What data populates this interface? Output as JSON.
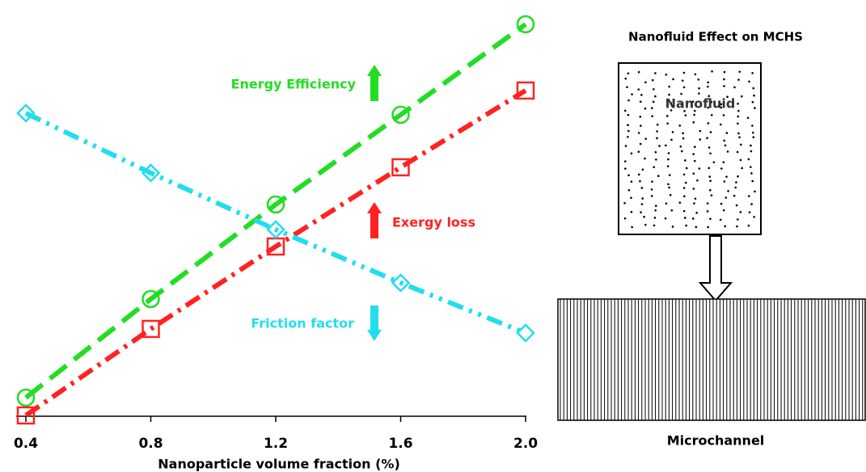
{
  "chart_data": {
    "type": "line",
    "x_label": "Nanoparticle volume fraction (%)",
    "x": [
      0.4,
      0.8,
      1.2,
      1.6,
      2.0
    ],
    "xlim": [
      0.4,
      2.0
    ],
    "xticks": [
      0.4,
      0.8,
      1.2,
      1.6,
      {
        "value": 2,
        "label": "2.0"
      }
    ],
    "ylim": [
      0,
      100
    ],
    "series": [
      {
        "name": "Energy Efficiency",
        "color": "#22dd22",
        "marker": "circle",
        "line_style": "long-dash",
        "values": [
          4.6,
          29,
          52.4,
          74.6,
          97
        ]
      },
      {
        "name": "Exergy loss",
        "color": "#ff2222",
        "marker": "square",
        "line_style": "dash-dot",
        "values": [
          0.2,
          21.6,
          42,
          61.6,
          80.6
        ]
      },
      {
        "name": "Friction factor",
        "color": "#22ddee",
        "marker": "diamond",
        "line_style": "dash-dot-dot",
        "values": [
          75,
          60.2,
          46.2,
          33,
          20.6
        ]
      }
    ]
  },
  "diagram": {
    "title": "Nanofluid Effect on MCHS",
    "fluid_label": "Nanofluid",
    "channel_label": "Microchannel"
  }
}
